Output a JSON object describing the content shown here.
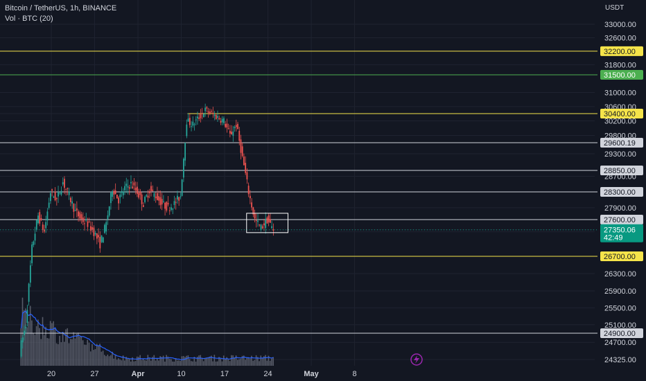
{
  "header": {
    "symbol_line": "Bitcoin / TetherUS, 1h, BINANCE",
    "volume_line": "Vol · BTC (20)",
    "currency": "USDT"
  },
  "colors": {
    "background": "#131722",
    "grid": "#1f2330",
    "up": "#26a69a",
    "down": "#ef5350",
    "yellow": "#f5e44a",
    "green": "#4caf50",
    "white": "#d1d4dc",
    "last": "#089981",
    "volume": "#6f7380",
    "volume_ma": "#2962ff",
    "tv_icon": "#9c27b0"
  },
  "chart_data": {
    "type": "candlestick",
    "y_axis": {
      "ticks": [
        33000,
        32600,
        32200,
        31800,
        31500,
        31000,
        30600,
        30400,
        30200,
        29800,
        29600,
        29300,
        28850,
        28700,
        28300,
        27900,
        27600,
        27350,
        27300,
        26700,
        26300,
        25900,
        25500,
        25100,
        24900,
        24700,
        24325
      ],
      "tick_labels": [
        "33000.00",
        "32600.00",
        "32200.00",
        "31800.00",
        "31500.00",
        "31000.00",
        "30600.00",
        "30400.00",
        "30200.00",
        "29800.00",
        "29600.19",
        "29300.00",
        "28850.00",
        "28700.00",
        "28300.00",
        "27900.00",
        "27600.00",
        "27350.06",
        "27300.00",
        "26700.00",
        "26300.00",
        "25900.00",
        "25500.00",
        "25100.00",
        "24900.00",
        "24700.00",
        "24325.00"
      ]
    },
    "x_axis": {
      "labels": [
        "20",
        "27",
        "Apr",
        "10",
        "17",
        "24",
        "May",
        "8"
      ],
      "bold": [
        "Apr",
        "May"
      ]
    },
    "levels": [
      {
        "value": 32200,
        "label": "32200.00",
        "color": "yellow",
        "start": "2023-03-15"
      },
      {
        "value": 31500,
        "label": "31500.00",
        "color": "green",
        "start": "2023-03-15"
      },
      {
        "value": 30400,
        "label": "30400.00",
        "color": "yellow",
        "start": "2023-04-11"
      },
      {
        "value": 29600.19,
        "label": "29600.19",
        "color": "white",
        "start": "2023-03-15"
      },
      {
        "value": 28850,
        "label": "28850.00",
        "color": "white",
        "start": "2023-03-15"
      },
      {
        "value": 28300,
        "label": "28300.00",
        "color": "white",
        "start": "2023-03-15"
      },
      {
        "value": 27600,
        "label": "27600.00",
        "color": "white",
        "start": "2023-03-15"
      },
      {
        "value": 26700,
        "label": "26700.00",
        "color": "yellow",
        "start": "2023-03-15"
      },
      {
        "value": 24900,
        "label": "24900.00",
        "color": "white",
        "start": "2023-03-15"
      }
    ],
    "last_price": {
      "value": 27350.06,
      "label": "27350.06",
      "countdown": "42:49"
    },
    "box": {
      "x_start": "2023-04-21",
      "x_end": "2023-04-25",
      "y_low": 27280,
      "y_high": 27760
    },
    "series": [
      {
        "date": "2023-03-15",
        "close": 24500
      },
      {
        "date": "2023-03-16",
        "close": 25100
      },
      {
        "date": "2023-03-17",
        "close": 26900
      },
      {
        "date": "2023-03-18",
        "close": 27700
      },
      {
        "date": "2023-03-19",
        "close": 27300
      },
      {
        "date": "2023-03-20",
        "close": 28300
      },
      {
        "date": "2023-03-21",
        "close": 28100
      },
      {
        "date": "2023-03-22",
        "close": 28550
      },
      {
        "date": "2023-03-23",
        "close": 28200
      },
      {
        "date": "2023-03-24",
        "close": 27800
      },
      {
        "date": "2023-03-25",
        "close": 27600
      },
      {
        "date": "2023-03-26",
        "close": 27500
      },
      {
        "date": "2023-03-27",
        "close": 27300
      },
      {
        "date": "2023-03-28",
        "close": 27000
      },
      {
        "date": "2023-03-29",
        "close": 27500
      },
      {
        "date": "2023-03-30",
        "close": 28400
      },
      {
        "date": "2023-03-31",
        "close": 28100
      },
      {
        "date": "2023-04-01",
        "close": 28400
      },
      {
        "date": "2023-04-02",
        "close": 28500
      },
      {
        "date": "2023-04-03",
        "close": 28300
      },
      {
        "date": "2023-04-04",
        "close": 28000
      },
      {
        "date": "2023-04-05",
        "close": 28350
      },
      {
        "date": "2023-04-06",
        "close": 28200
      },
      {
        "date": "2023-04-07",
        "close": 28000
      },
      {
        "date": "2023-04-08",
        "close": 27900
      },
      {
        "date": "2023-04-09",
        "close": 28000
      },
      {
        "date": "2023-04-10",
        "close": 28200
      },
      {
        "date": "2023-04-11",
        "close": 30200
      },
      {
        "date": "2023-04-12",
        "close": 30100
      },
      {
        "date": "2023-04-13",
        "close": 30300
      },
      {
        "date": "2023-04-14",
        "close": 30500
      },
      {
        "date": "2023-04-15",
        "close": 30400
      },
      {
        "date": "2023-04-16",
        "close": 30300
      },
      {
        "date": "2023-04-17",
        "close": 30200
      },
      {
        "date": "2023-04-18",
        "close": 29800
      },
      {
        "date": "2023-04-19",
        "close": 30100
      },
      {
        "date": "2023-04-20",
        "close": 29200
      },
      {
        "date": "2023-04-21",
        "close": 28300
      },
      {
        "date": "2023-04-22",
        "close": 27600
      },
      {
        "date": "2023-04-23",
        "close": 27400
      },
      {
        "date": "2023-04-24",
        "close": 27600
      },
      {
        "date": "2023-04-25",
        "close": 27350
      }
    ]
  }
}
